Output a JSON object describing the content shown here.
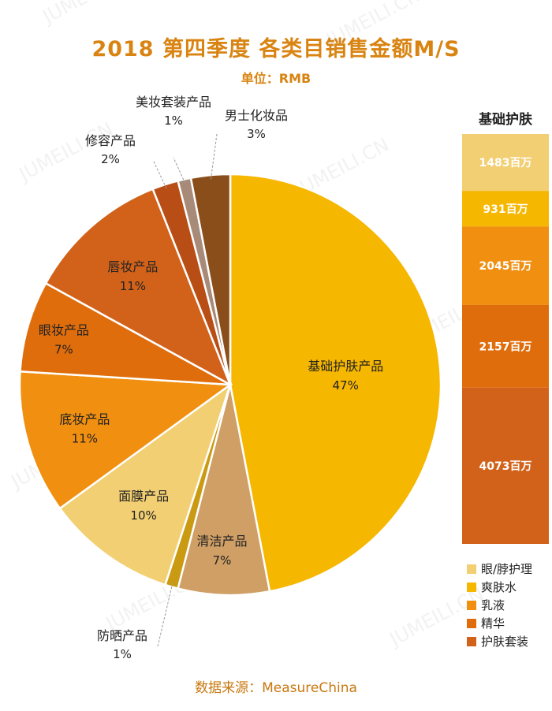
{
  "header": {
    "title": "2018 第四季度 各类目销售金额M/S",
    "unit": "单位：RMB"
  },
  "source": "数据来源：MeasureChina",
  "watermark": "JUMEILI.CN",
  "chart_data": [
    {
      "type": "pie",
      "slices": [
        {
          "name": "基础护肤产品",
          "label": "47%",
          "value": 47,
          "color": "#f6b700"
        },
        {
          "name": "清洁产品",
          "label": "7%",
          "value": 7,
          "color": "#cf9f66"
        },
        {
          "name": "防晒产品",
          "label": "1%",
          "value": 1,
          "color": "#c99a12"
        },
        {
          "name": "面膜产品",
          "label": "10%",
          "value": 10,
          "color": "#f2cf72"
        },
        {
          "name": "底妆产品",
          "label": "11%",
          "value": 11,
          "color": "#f08f10"
        },
        {
          "name": "眼妆产品",
          "label": "7%",
          "value": 7,
          "color": "#e06d0c"
        },
        {
          "name": "唇妆产品",
          "label": "11%",
          "value": 11,
          "color": "#d2621a"
        },
        {
          "name": "修容产品",
          "label": "2%",
          "value": 2,
          "color": "#b84e15"
        },
        {
          "name": "美妆套装产品",
          "label": "1%",
          "value": 1,
          "color": "#a88a78"
        },
        {
          "name": "男士化妆品",
          "label": "3%",
          "value": 3,
          "color": "#8a4e1b"
        }
      ]
    },
    {
      "type": "bar",
      "title": "基础护肤",
      "series": [
        {
          "name": "眼/脖护理",
          "value": 1483,
          "label": "1483百万",
          "color": "#f2cf72"
        },
        {
          "name": "爽肤水",
          "value": 931,
          "label": "931百万",
          "color": "#f6b700"
        },
        {
          "name": "乳液",
          "value": 2045,
          "label": "2045百万",
          "color": "#f08f10"
        },
        {
          "name": "精华",
          "value": 2157,
          "label": "2157百万",
          "color": "#e06d0c"
        },
        {
          "name": "护肤套装",
          "value": 4073,
          "label": "4073百万",
          "color": "#d2621a"
        }
      ]
    }
  ]
}
